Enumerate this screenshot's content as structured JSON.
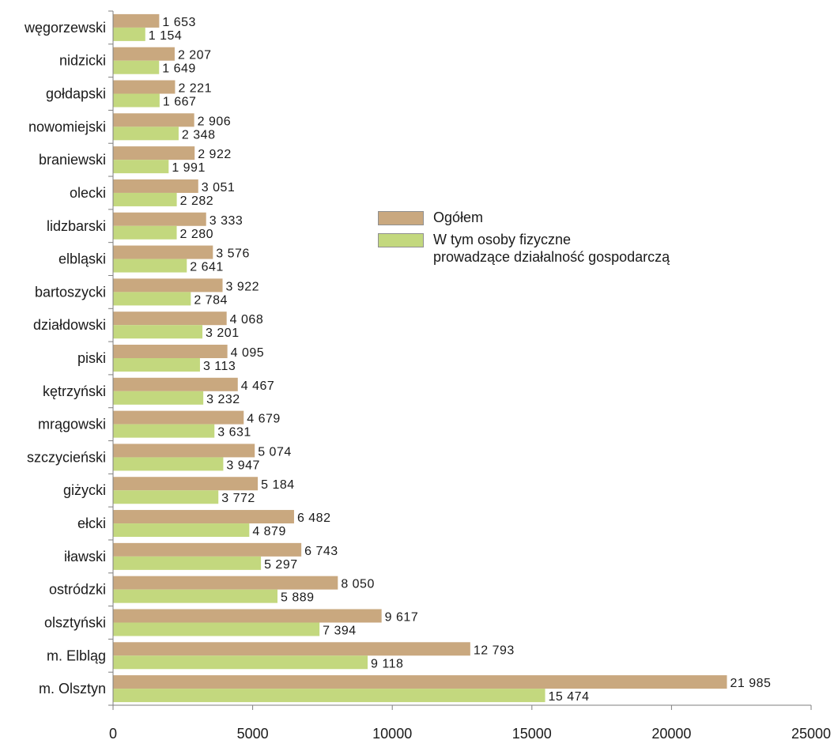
{
  "chart_data": {
    "type": "bar",
    "orientation": "horizontal",
    "categories": [
      "węgorzewski",
      "nidzicki",
      "gołdapski",
      "nowomiejski",
      "braniewski",
      "olecki",
      "lidzbarski",
      "elbląski",
      "bartoszycki",
      "działdowski",
      "piski",
      "kętrzyński",
      "mrągowski",
      "szczycieński",
      "giżycki",
      "ełcki",
      "iławski",
      "ostródzki",
      "olsztyński",
      "m. Elbląg",
      "m. Olsztyn"
    ],
    "series": [
      {
        "name": "Ogółem",
        "color": "#c9a87f",
        "values": [
          1653,
          2207,
          2221,
          2906,
          2922,
          3051,
          3333,
          3576,
          3922,
          4068,
          4095,
          4467,
          4679,
          5074,
          5184,
          6482,
          6743,
          8050,
          9617,
          12793,
          21985
        ],
        "labels": [
          "1 653",
          "2 207",
          "2 221",
          "2 906",
          "2 922",
          "3 051",
          "3 333",
          "3 576",
          "3 922",
          "4 068",
          "4 095",
          "4 467",
          "4 679",
          "5 074",
          "5 184",
          "6 482",
          "6 743",
          "8 050",
          "9 617",
          "12 793",
          "21 985"
        ]
      },
      {
        "name": "W tym osoby fizyczne\nprowadzące działalność gospodarczą",
        "color": "#c3d87e",
        "values": [
          1154,
          1649,
          1667,
          2348,
          1991,
          2282,
          2280,
          2641,
          2784,
          3201,
          3113,
          3232,
          3631,
          3947,
          3772,
          4879,
          5297,
          5889,
          7394,
          9118,
          15474
        ],
        "labels": [
          "1 154",
          "1 649",
          "1 667",
          "2 348",
          "1 991",
          "2 282",
          "2 280",
          "2 641",
          "2 784",
          "3 201",
          "3 113",
          "3 232",
          "3 631",
          "3 947",
          "3 772",
          "4 879",
          "5 297",
          "5 889",
          "7 394",
          "9 118",
          "15 474"
        ]
      }
    ],
    "xlim": [
      0,
      25000
    ],
    "xticks": [
      0,
      5000,
      10000,
      15000,
      20000,
      25000
    ],
    "xtick_labels": [
      "0",
      "5000",
      "10000",
      "15000",
      "20000",
      "25000"
    ],
    "grid": false,
    "legend_position": "center-right"
  }
}
